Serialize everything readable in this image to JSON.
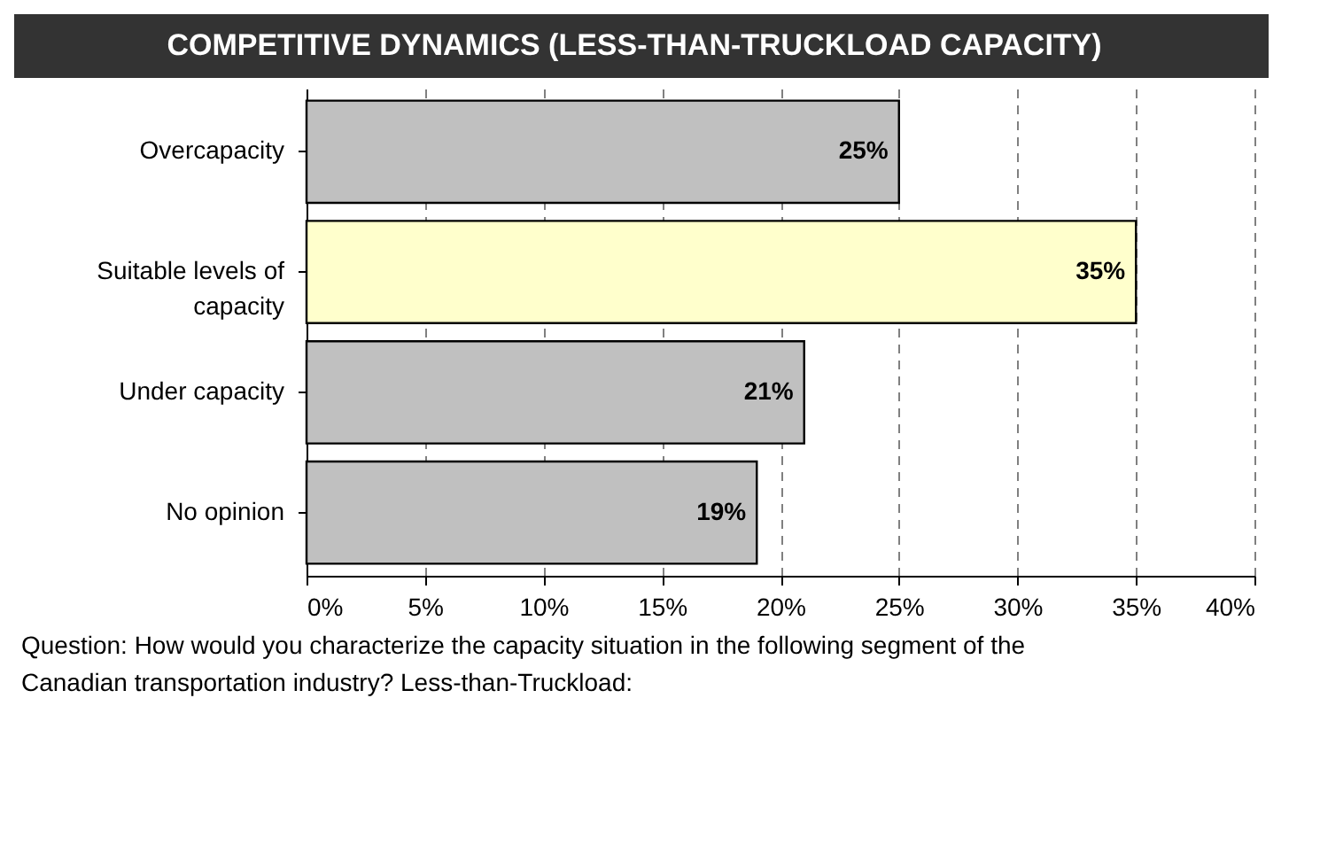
{
  "chart_data": {
    "type": "bar",
    "orientation": "horizontal",
    "title": "COMPETITIVE DYNAMICS (LESS-THAN-TRUCKLOAD CAPACITY)",
    "categories": [
      "Overcapacity",
      "Suitable levels of capacity",
      "Under capacity",
      "No opinion"
    ],
    "values": [
      25,
      35,
      21,
      19
    ],
    "colors": [
      "#c0c0c0",
      "#ffffcc",
      "#c0c0c0",
      "#c0c0c0"
    ],
    "value_labels": [
      "25%",
      "35%",
      "21%",
      "19%"
    ],
    "xlim": [
      0,
      40
    ],
    "xticks": [
      {
        "value": 0,
        "label": "0%"
      },
      {
        "value": 5,
        "label": "5%"
      },
      {
        "value": 10,
        "label": "10%"
      },
      {
        "value": 15,
        "label": "15%"
      },
      {
        "value": 20,
        "label": "20%"
      },
      {
        "value": 25,
        "label": "25%"
      },
      {
        "value": 30,
        "label": "30%"
      },
      {
        "value": 35,
        "label": "35%"
      },
      {
        "value": 40,
        "label": "40%"
      }
    ],
    "grid": "x",
    "annotations": [
      "Question: How would you characterize the capacity situation in the following segment of the Canadian transportation industry? Less-than-Truckload:"
    ]
  }
}
